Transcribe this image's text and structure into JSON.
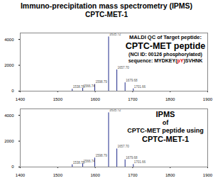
{
  "title": "Immuno-precipitation mass spectrometry (IPMS)",
  "subtitle": "CPTC-MET-1",
  "chart_data": [
    {
      "type": "bar",
      "annotations": [
        [
          {
            "text": "MALDI QC of Target peptide:"
          }
        ],
        [
          {
            "text": "CPTC-MET peptide"
          }
        ],
        [
          {
            "text": "(NCI ID: 00126 phosphorylated)"
          }
        ],
        [
          {
            "text": "sequence: MYDKEY("
          },
          {
            "text": "pY",
            "color": "#e00000"
          },
          {
            "text": ")SVHNK"
          }
        ]
      ],
      "x": [
        1538.76,
        1566.74,
        1598.79,
        1635.72,
        1657.7,
        1679.68,
        1701.66
      ],
      "values": [
        150,
        230,
        520,
        4200,
        1650,
        650,
        180
      ],
      "peak_labels": [
        "1538.76",
        "1566.74",
        "1598.79",
        "1635.72",
        "1657.70",
        "1679.68",
        "1701.66"
      ],
      "color": "#1f2a8a",
      "xlim": [
        1400,
        1900
      ],
      "xticks": [
        1400,
        1500,
        1600,
        1700,
        1800,
        1900
      ],
      "ylim": [
        0,
        4500
      ],
      "yticks": [
        0,
        2000,
        4000
      ]
    },
    {
      "type": "bar",
      "annotations": [
        [
          {
            "text": "IPMS"
          }
        ],
        [
          {
            "text": "of"
          }
        ],
        [
          {
            "text": "CPTC-MET peptide using"
          }
        ],
        [
          {
            "text": "CPTC-MET-1"
          }
        ]
      ],
      "x": [
        1538.76,
        1566.74,
        1598.79,
        1635.72,
        1657.7,
        1679.68,
        1701.66
      ],
      "values": [
        180,
        260,
        700,
        4200,
        1400,
        560,
        200
      ],
      "peak_labels": [
        "1538.76",
        "1566.74",
        "1598.79",
        "1635.72",
        "1657.70",
        "1679.68",
        "1701.66"
      ],
      "color": "#1f2a8a",
      "xlim": [
        1400,
        1900
      ],
      "xticks": [
        1400,
        1500,
        1600,
        1700,
        1800,
        1900
      ],
      "ylim": [
        0,
        4500
      ],
      "yticks": [
        0,
        2000,
        4000
      ]
    }
  ]
}
